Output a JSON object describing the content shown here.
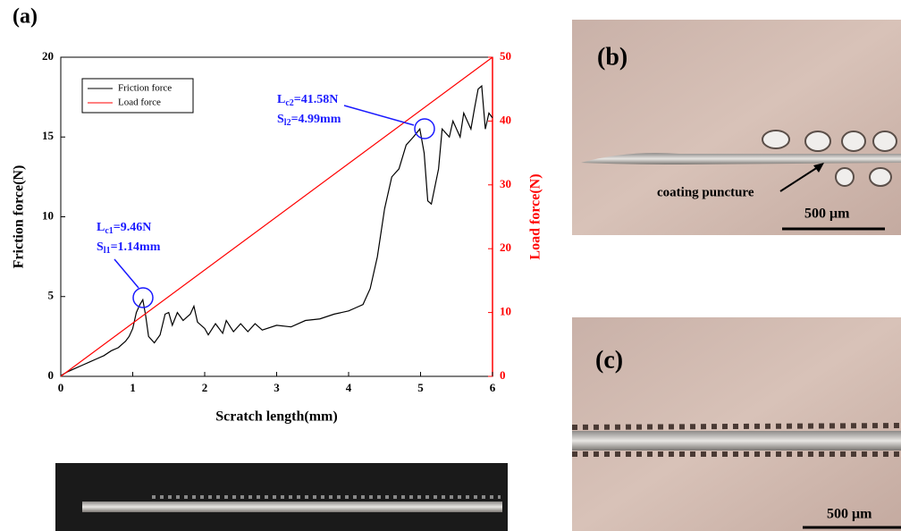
{
  "chart_data": {
    "type": "line",
    "panel_label": "(a)",
    "xlabel": "Scratch length(mm)",
    "ylabel": "Friction force(N)",
    "y2label": "Load force(N)",
    "xlim": [
      0,
      6
    ],
    "xticks": [
      0,
      1,
      2,
      3,
      4,
      5,
      6
    ],
    "ylim": [
      0,
      20
    ],
    "yticks": [
      0,
      5,
      10,
      15,
      20
    ],
    "y2lim": [
      0,
      50
    ],
    "y2ticks": [
      0,
      10,
      20,
      30,
      40,
      50
    ],
    "legend": "upper left",
    "series": [
      {
        "name": "Friction force",
        "color": "#000000",
        "x": [
          0,
          0.1,
          0.2,
          0.3,
          0.4,
          0.5,
          0.6,
          0.7,
          0.8,
          0.9,
          0.95,
          1.0,
          1.05,
          1.1,
          1.14,
          1.18,
          1.22,
          1.3,
          1.38,
          1.45,
          1.5,
          1.55,
          1.62,
          1.7,
          1.8,
          1.85,
          1.9,
          2.0,
          2.05,
          2.15,
          2.25,
          2.3,
          2.4,
          2.5,
          2.6,
          2.7,
          2.8,
          3.0,
          3.2,
          3.4,
          3.6,
          3.8,
          4.0,
          4.1,
          4.2,
          4.3,
          4.4,
          4.5,
          4.6,
          4.7,
          4.8,
          4.9,
          4.99,
          5.05,
          5.1,
          5.15,
          5.25,
          5.3,
          5.4,
          5.45,
          5.55,
          5.6,
          5.7,
          5.75,
          5.8,
          5.85,
          5.9,
          5.95,
          6.0
        ],
        "values": [
          0.05,
          0.3,
          0.5,
          0.7,
          0.9,
          1.1,
          1.3,
          1.6,
          1.8,
          2.2,
          2.5,
          3.0,
          4.0,
          4.5,
          4.8,
          3.8,
          2.5,
          2.1,
          2.6,
          3.9,
          4.0,
          3.2,
          4.0,
          3.5,
          3.9,
          4.4,
          3.4,
          3.0,
          2.6,
          3.3,
          2.7,
          3.5,
          2.8,
          3.3,
          2.8,
          3.3,
          2.9,
          3.2,
          3.1,
          3.5,
          3.6,
          3.9,
          4.1,
          4.3,
          4.5,
          5.5,
          7.5,
          10.5,
          12.5,
          13.0,
          14.5,
          15.0,
          15.5,
          14.0,
          11.0,
          10.8,
          13.0,
          15.5,
          15.0,
          16.0,
          15.0,
          16.5,
          15.5,
          16.8,
          18.0,
          18.2,
          15.5,
          16.5,
          16.2
        ]
      },
      {
        "name": "Load force",
        "color": "#ff0000",
        "axis": "y2",
        "x": [
          0,
          6
        ],
        "values": [
          0,
          50
        ]
      }
    ],
    "annotations": [
      {
        "l": "L",
        "l_sub": "c1",
        "l_rest": "=9.46N",
        "s": "S",
        "s_sub": "l1",
        "s_rest": "=1.14mm"
      },
      {
        "l": "L",
        "l_sub": "c2",
        "l_rest": "=41.58N",
        "s": "S",
        "s_sub": "l2",
        "s_rest": "=4.99mm"
      }
    ]
  },
  "panels": {
    "b": {
      "label": "(b)",
      "note": "coating puncture",
      "scale": "500 μm"
    },
    "c": {
      "label": "(c)",
      "scale": "500 μm"
    }
  }
}
